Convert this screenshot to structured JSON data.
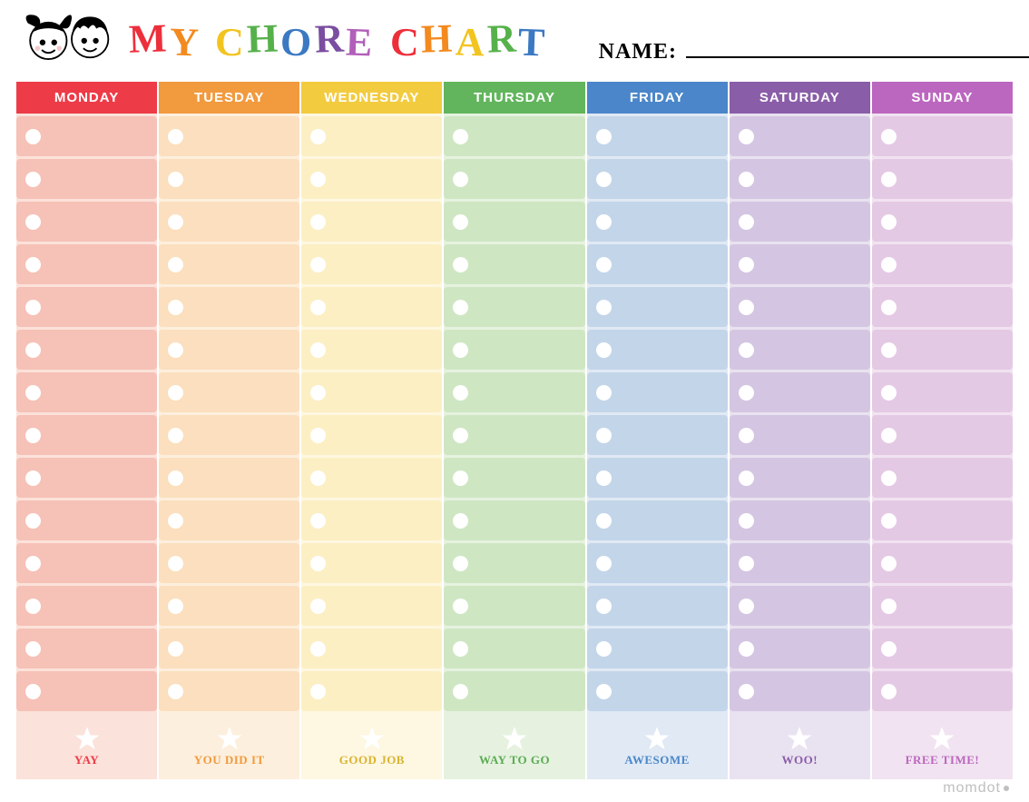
{
  "title_letters": [
    {
      "ch": "M",
      "color": "#ed2f3b"
    },
    {
      "ch": "Y",
      "color": "#f38a1f"
    },
    {
      "ch": " ",
      "color": ""
    },
    {
      "ch": "C",
      "color": "#f2c41f"
    },
    {
      "ch": "H",
      "color": "#57b14b"
    },
    {
      "ch": "O",
      "color": "#3b79c2"
    },
    {
      "ch": "R",
      "color": "#7a4ea0"
    },
    {
      "ch": "E",
      "color": "#b25fba"
    },
    {
      "ch": " ",
      "color": ""
    },
    {
      "ch": "C",
      "color": "#ed2f3b"
    },
    {
      "ch": "H",
      "color": "#f38a1f"
    },
    {
      "ch": "A",
      "color": "#f2c41f"
    },
    {
      "ch": "R",
      "color": "#57b14b"
    },
    {
      "ch": "T",
      "color": "#3b79c2"
    }
  ],
  "name_label": "NAME:",
  "name_value": "",
  "rows_per_day": 14,
  "days": [
    {
      "label": "MONDAY",
      "header": "#ed3b47",
      "cell": "#f6c1b6",
      "column_bg": "#fbe2da",
      "text": "#ed3b47",
      "footer": "YAY"
    },
    {
      "label": "TUESDAY",
      "header": "#f19a3e",
      "cell": "#fbdfbe",
      "column_bg": "#fdefdd",
      "text": "#f19a3e",
      "footer": "YOU DID IT"
    },
    {
      "label": "WEDNESDAY",
      "header": "#f3cb3f",
      "cell": "#fcefc4",
      "column_bg": "#fef7e1",
      "text": "#d8b431",
      "footer": "GOOD JOB"
    },
    {
      "label": "THURSDAY",
      "header": "#62b55c",
      "cell": "#cfe6c3",
      "column_bg": "#e6f2df",
      "text": "#5bab54",
      "footer": "WAY TO GO"
    },
    {
      "label": "FRIDAY",
      "header": "#4a86c9",
      "cell": "#c3d5e9",
      "column_bg": "#e0e9f4",
      "text": "#4a86c9",
      "footer": "AWESOME"
    },
    {
      "label": "SATURDAY",
      "header": "#8a5da8",
      "cell": "#d4c6e2",
      "column_bg": "#e9e2f0",
      "text": "#8a5da8",
      "footer": "WOO!"
    },
    {
      "label": "SUNDAY",
      "header": "#bb67bf",
      "cell": "#e4c9e4",
      "column_bg": "#f1e3f1",
      "text": "#bb67bf",
      "footer": "FREE TIME!"
    }
  ],
  "brand": "momdot"
}
